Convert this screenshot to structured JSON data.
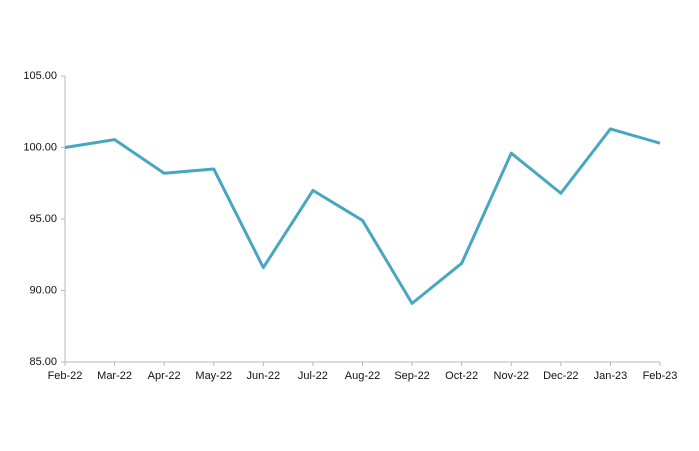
{
  "chart_data": {
    "type": "line",
    "categories": [
      "Feb-22",
      "Mar-22",
      "Apr-22",
      "May-22",
      "Jun-22",
      "Jul-22",
      "Aug-22",
      "Sep-22",
      "Oct-22",
      "Nov-22",
      "Dec-22",
      "Jan-23",
      "Feb-23"
    ],
    "series": [
      {
        "color": "#48a7c0",
        "values": [
          100.0,
          100.55,
          98.2,
          98.5,
          91.6,
          97.0,
          94.9,
          89.1,
          91.9,
          99.6,
          96.8,
          101.3,
          100.3
        ]
      }
    ],
    "ylim": [
      85,
      105
    ],
    "yticks": [
      {
        "value": 85,
        "label": "85.00"
      },
      {
        "value": 90,
        "label": "90.00"
      },
      {
        "value": 95,
        "label": "95.00"
      },
      {
        "value": 100,
        "label": "100.00"
      },
      {
        "value": 105,
        "label": "105.00"
      }
    ],
    "grid": false
  }
}
